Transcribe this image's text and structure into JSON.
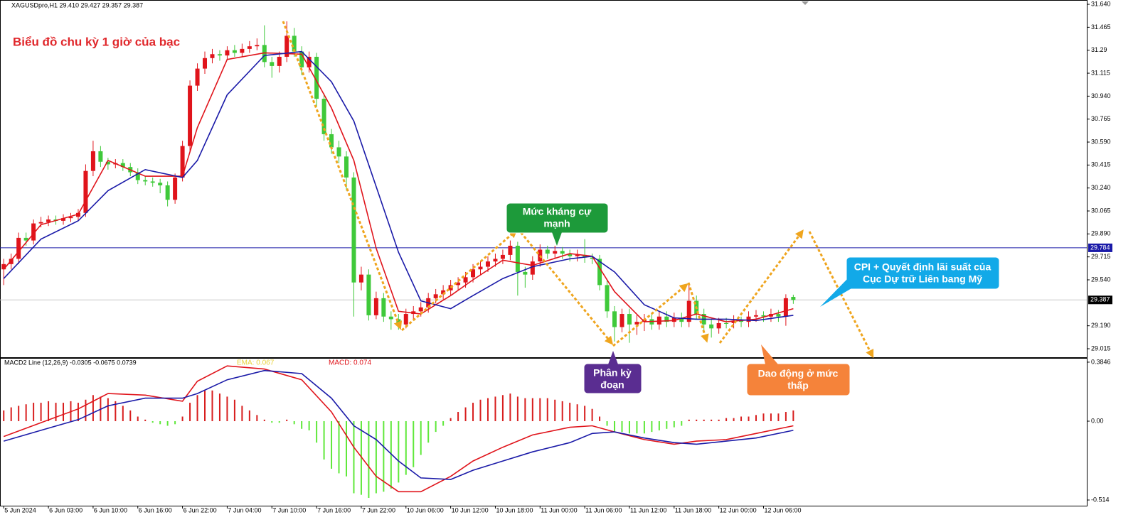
{
  "chart_data": [
    {
      "type": "candlestick",
      "header": "XAGUSDpro,H1 29.410 29.427 29.357 29.387",
      "title": "Biểu đồ chu kỳ 1 giờ của bạc",
      "up_color": "#e0141b",
      "down_color": "#3fc93a",
      "open": [
        29.62,
        29.66,
        29.7,
        29.86,
        29.84,
        29.97,
        29.98,
        30.0,
        29.99,
        30.01,
        30.02,
        30.05,
        30.37,
        30.52,
        30.44,
        30.42,
        30.43,
        30.4,
        30.36,
        30.3,
        30.29,
        30.28,
        30.26,
        30.15,
        30.32,
        30.56,
        31.02,
        31.15,
        31.23,
        31.26,
        31.25,
        31.29,
        31.27,
        31.3,
        31.32,
        31.33,
        31.2,
        31.17,
        31.24,
        31.4,
        31.28,
        31.16,
        31.24,
        30.92,
        30.65,
        30.55,
        30.48,
        30.32,
        29.52,
        29.58,
        29.27,
        29.4,
        29.26,
        29.24,
        29.2,
        29.28,
        29.3,
        29.33,
        29.4,
        29.43,
        29.46,
        29.5,
        29.52,
        29.56,
        29.62,
        29.64,
        29.68,
        29.7,
        29.73,
        29.8,
        29.6,
        29.58,
        29.68,
        29.77,
        29.74,
        29.76,
        29.74,
        29.72,
        29.73,
        29.71,
        29.7,
        29.5,
        29.3,
        29.18,
        29.28,
        29.2,
        29.22,
        29.24,
        29.2,
        29.26,
        29.22,
        29.25,
        29.22,
        29.38,
        29.28,
        29.2,
        29.17,
        29.21,
        29.21,
        29.23,
        29.22,
        29.26,
        29.27,
        29.26,
        29.28,
        29.26,
        29.41
      ],
      "high": [
        29.7,
        29.74,
        29.9,
        29.9,
        30.0,
        30.02,
        30.03,
        30.03,
        30.04,
        30.05,
        30.08,
        30.42,
        30.6,
        30.56,
        30.47,
        30.46,
        30.46,
        30.43,
        30.39,
        30.33,
        30.32,
        30.31,
        30.29,
        30.35,
        30.6,
        31.06,
        31.19,
        31.28,
        31.3,
        31.29,
        31.32,
        31.33,
        31.34,
        31.36,
        31.38,
        31.48,
        31.24,
        31.28,
        31.51,
        31.46,
        31.32,
        31.28,
        31.27,
        30.96,
        30.69,
        30.6,
        30.52,
        30.36,
        29.64,
        29.62,
        29.45,
        29.44,
        29.3,
        29.28,
        29.32,
        29.34,
        29.37,
        29.44,
        29.47,
        29.5,
        29.54,
        29.56,
        29.6,
        29.66,
        29.68,
        29.72,
        29.74,
        29.77,
        29.84,
        29.83,
        29.64,
        29.72,
        29.81,
        29.8,
        29.8,
        29.79,
        29.77,
        29.77,
        29.85,
        29.74,
        29.73,
        29.54,
        29.34,
        29.32,
        29.32,
        29.27,
        29.28,
        29.28,
        29.3,
        29.3,
        29.29,
        29.29,
        29.5,
        29.42,
        29.32,
        29.24,
        29.25,
        29.25,
        29.27,
        29.26,
        29.3,
        29.31,
        29.3,
        29.32,
        29.31,
        29.43,
        29.427
      ],
      "low": [
        29.5,
        29.62,
        29.66,
        29.8,
        29.81,
        29.94,
        29.95,
        29.96,
        29.96,
        29.98,
        29.99,
        30.02,
        30.33,
        30.4,
        30.38,
        30.39,
        30.37,
        30.33,
        30.27,
        30.26,
        30.25,
        30.2,
        30.1,
        30.12,
        30.29,
        30.52,
        30.98,
        31.11,
        31.19,
        31.21,
        31.22,
        31.24,
        31.24,
        31.27,
        31.29,
        31.16,
        31.08,
        31.12,
        31.2,
        31.24,
        31.1,
        31.12,
        30.86,
        30.6,
        30.5,
        30.43,
        30.22,
        29.26,
        29.46,
        29.23,
        29.24,
        29.22,
        29.16,
        29.16,
        29.17,
        29.24,
        29.26,
        29.29,
        29.36,
        29.39,
        29.42,
        29.46,
        29.48,
        29.52,
        29.58,
        29.6,
        29.64,
        29.66,
        29.69,
        29.42,
        29.48,
        29.54,
        29.64,
        29.7,
        29.7,
        29.7,
        29.68,
        29.68,
        29.67,
        29.66,
        29.46,
        29.25,
        29.07,
        29.14,
        29.06,
        29.12,
        29.15,
        29.16,
        29.16,
        29.18,
        29.18,
        29.18,
        29.18,
        29.24,
        29.14,
        29.1,
        29.13,
        29.17,
        29.17,
        29.18,
        29.18,
        29.22,
        29.22,
        29.22,
        29.22,
        29.19,
        29.357
      ],
      "close": [
        29.66,
        29.7,
        29.86,
        29.84,
        29.97,
        29.98,
        30.0,
        29.99,
        30.01,
        30.02,
        30.05,
        30.37,
        30.52,
        30.44,
        30.42,
        30.43,
        30.4,
        30.36,
        30.3,
        30.29,
        30.28,
        30.26,
        30.15,
        30.32,
        30.56,
        31.02,
        31.15,
        31.23,
        31.26,
        31.25,
        31.29,
        31.27,
        31.3,
        31.32,
        31.33,
        31.2,
        31.17,
        31.24,
        31.4,
        31.28,
        31.16,
        31.24,
        30.92,
        30.65,
        30.55,
        30.48,
        30.32,
        29.52,
        29.58,
        29.27,
        29.4,
        29.26,
        29.24,
        29.2,
        29.28,
        29.3,
        29.33,
        29.4,
        29.43,
        29.46,
        29.5,
        29.52,
        29.56,
        29.62,
        29.64,
        29.68,
        29.7,
        29.73,
        29.8,
        29.6,
        29.58,
        29.68,
        29.77,
        29.74,
        29.76,
        29.74,
        29.72,
        29.73,
        29.71,
        29.7,
        29.5,
        29.3,
        29.18,
        29.28,
        29.2,
        29.22,
        29.24,
        29.2,
        29.26,
        29.22,
        29.25,
        29.22,
        29.38,
        29.28,
        29.2,
        29.17,
        29.21,
        29.21,
        29.23,
        29.22,
        29.26,
        29.27,
        29.26,
        29.28,
        29.26,
        29.4,
        29.387
      ],
      "series": [
        {
          "color": "#e0141b",
          "x": [
            0,
            5,
            10,
            14,
            19,
            24,
            26,
            30,
            35,
            40,
            44,
            47,
            50,
            53,
            56,
            60,
            63,
            67,
            71,
            76,
            79,
            82,
            86,
            90,
            93,
            97,
            101,
            106
          ],
          "values": [
            29.62,
            29.96,
            30.04,
            30.45,
            30.33,
            30.33,
            30.7,
            31.22,
            31.27,
            31.26,
            30.85,
            30.45,
            29.78,
            29.3,
            29.28,
            29.42,
            29.54,
            29.69,
            29.65,
            29.74,
            29.72,
            29.45,
            29.22,
            29.23,
            29.28,
            29.22,
            29.24,
            29.32
          ]
        },
        {
          "color": "#1a1aa8",
          "x": [
            0,
            5,
            10,
            14,
            19,
            24,
            26,
            30,
            35,
            40,
            44,
            47,
            50,
            53,
            56,
            60,
            63,
            67,
            71,
            76,
            79,
            82,
            86,
            90,
            93,
            97,
            101,
            106
          ],
          "values": [
            29.55,
            29.85,
            29.99,
            30.22,
            30.38,
            30.32,
            30.45,
            30.95,
            31.25,
            31.28,
            31.05,
            30.75,
            30.25,
            29.75,
            29.38,
            29.32,
            29.42,
            29.55,
            29.64,
            29.7,
            29.72,
            29.6,
            29.35,
            29.25,
            29.24,
            29.24,
            29.23,
            29.27
          ]
        }
      ],
      "hlines": [
        {
          "value": 29.784,
          "color": "#1a1aa8",
          "box": "#1a1aa8"
        },
        {
          "value": 29.387,
          "color": "#c8c8c8",
          "box": "#000000"
        }
      ],
      "annotations": [
        {
          "lines": [
            "Mức kháng cự",
            "mạnh"
          ]
        },
        {
          "lines": [
            "Phân kỳ",
            "đoạn"
          ]
        },
        {
          "lines": [
            "Dao động ở mức",
            "thấp"
          ]
        },
        {
          "lines": [
            "CPI + Quyết định lãi suất của",
            "Cục Dự trữ Liên bang Mỹ"
          ]
        }
      ],
      "xlim": [
        -0.5,
        145.4
      ],
      "ylim": [
        28.95,
        31.662
      ],
      "yticks": [
        {
          "value": 31.64,
          "label": "31.640"
        },
        31.465,
        31.29,
        31.115,
        {
          "value": 30.94,
          "label": "30.940"
        },
        30.765,
        {
          "value": 30.59,
          "label": "30.590"
        },
        30.415,
        {
          "value": 30.24,
          "label": "30.240"
        },
        30.065,
        {
          "value": 29.89,
          "label": "29.890"
        },
        29.715,
        {
          "value": 29.54,
          "label": "29.540"
        },
        {
          "value": 29.19,
          "label": "29.190"
        },
        29.015
      ]
    },
    {
      "type": "macd",
      "header": "MACD2 Line (12,26,9) -0.0305 -0.0675 0.0739",
      "readouts": [
        "EMA: 0.067",
        "MACD: 0.074"
      ],
      "up_color": "#d81e1e",
      "down_color": "#5fe83a",
      "histogram": [
        0.07,
        0.09,
        0.1,
        0.11,
        0.12,
        0.12,
        0.13,
        0.12,
        0.12,
        0.13,
        0.12,
        0.14,
        0.17,
        0.16,
        0.15,
        0.13,
        0.1,
        0.07,
        0.03,
        0.01,
        -0.01,
        -0.02,
        -0.03,
        -0.02,
        0.03,
        0.12,
        0.17,
        0.2,
        0.2,
        0.18,
        0.16,
        0.14,
        0.1,
        0.07,
        0.04,
        0.01,
        -0.01,
        -0.01,
        0.01,
        -0.02,
        -0.05,
        -0.06,
        -0.14,
        -0.25,
        -0.31,
        -0.34,
        -0.36,
        -0.47,
        -0.48,
        -0.5,
        -0.47,
        -0.46,
        -0.44,
        -0.4,
        -0.35,
        -0.3,
        -0.22,
        -0.14,
        -0.07,
        -0.03,
        0.02,
        0.06,
        0.09,
        0.12,
        0.14,
        0.15,
        0.16,
        0.17,
        0.18,
        0.16,
        0.15,
        0.15,
        0.15,
        0.15,
        0.14,
        0.13,
        0.12,
        0.11,
        0.1,
        0.08,
        0.03,
        -0.03,
        -0.07,
        -0.07,
        -0.08,
        -0.08,
        -0.08,
        -0.07,
        -0.06,
        -0.05,
        -0.04,
        -0.03,
        0.01,
        0.01,
        0.01,
        0.01,
        0.01,
        0.02,
        0.02,
        0.03,
        0.03,
        0.04,
        0.05,
        0.05,
        0.05,
        0.06,
        0.07
      ],
      "series": [
        {
          "color": "#e0141b",
          "x": [
            0,
            5,
            10,
            14,
            19,
            24,
            26,
            30,
            35,
            40,
            44,
            47,
            50,
            53,
            56,
            60,
            63,
            67,
            71,
            76,
            79,
            82,
            86,
            90,
            93,
            97,
            101,
            106
          ],
          "values": [
            -0.1,
            -0.01,
            0.08,
            0.18,
            0.17,
            0.13,
            0.26,
            0.36,
            0.34,
            0.27,
            0.06,
            -0.17,
            -0.36,
            -0.46,
            -0.46,
            -0.36,
            -0.26,
            -0.17,
            -0.09,
            -0.04,
            -0.03,
            -0.07,
            -0.12,
            -0.15,
            -0.13,
            -0.12,
            -0.08,
            -0.03
          ]
        },
        {
          "color": "#1a1aa8",
          "x": [
            0,
            5,
            10,
            14,
            19,
            24,
            26,
            30,
            35,
            40,
            44,
            47,
            50,
            53,
            56,
            60,
            63,
            67,
            71,
            76,
            79,
            82,
            86,
            90,
            93,
            97,
            101,
            106
          ],
          "values": [
            -0.13,
            -0.06,
            0.01,
            0.1,
            0.15,
            0.15,
            0.18,
            0.27,
            0.33,
            0.31,
            0.15,
            -0.03,
            -0.12,
            -0.26,
            -0.37,
            -0.38,
            -0.32,
            -0.26,
            -0.2,
            -0.14,
            -0.08,
            -0.07,
            -0.11,
            -0.14,
            -0.15,
            -0.13,
            -0.11,
            -0.06
          ]
        }
      ],
      "xlim": [
        -0.5,
        145.4
      ],
      "ylim": [
        -0.551,
        0.412
      ],
      "yticks": [
        0.3846,
        {
          "value": 0,
          "label": "0.00"
        },
        -0.514
      ],
      "xticks": [
        {
          "value": 0,
          "label": "5 Jun 2024"
        },
        {
          "value": 6,
          "label": "6 Jun 03:00"
        },
        {
          "value": 12,
          "label": "6 Jun 10:00"
        },
        {
          "value": 18,
          "label": "6 Jun 16:00"
        },
        {
          "value": 24,
          "label": "6 Jun 22:00"
        },
        {
          "value": 30,
          "label": "7 Jun 04:00"
        },
        {
          "value": 36,
          "label": "7 Jun 10:00"
        },
        {
          "value": 42,
          "label": "7 Jun 16:00"
        },
        {
          "value": 48,
          "label": "7 Jun 22:00"
        },
        {
          "value": 54,
          "label": "10 Jun 06:00"
        },
        {
          "value": 60,
          "label": "10 Jun 12:00"
        },
        {
          "value": 66,
          "label": "10 Jun 18:00"
        },
        {
          "value": 72,
          "label": "11 Jun 00:00"
        },
        {
          "value": 78,
          "label": "11 Jun 06:00"
        },
        {
          "value": 84,
          "label": "11 Jun 12:00"
        },
        {
          "value": 90,
          "label": "11 Jun 18:00"
        },
        {
          "value": 96,
          "label": "12 Jun 00:00"
        },
        {
          "value": 102,
          "label": "12 Jun 06:00"
        }
      ]
    }
  ]
}
